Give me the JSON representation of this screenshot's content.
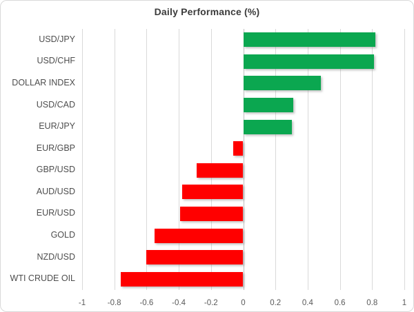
{
  "chart_data": {
    "type": "bar",
    "orientation": "horizontal",
    "title": "Daily Performance (%)",
    "categories": [
      "USD/JPY",
      "USD/CHF",
      "DOLLAR INDEX",
      "USD/CAD",
      "EUR/JPY",
      "EUR/GBP",
      "GBP/USD",
      "AUD/USD",
      "EUR/USD",
      "GOLD",
      "NZD/USD",
      "WTI CRUDE OIL"
    ],
    "values": [
      0.82,
      0.81,
      0.48,
      0.31,
      0.3,
      -0.06,
      -0.29,
      -0.38,
      -0.39,
      -0.55,
      -0.6,
      -0.76
    ],
    "xlabel": "",
    "ylabel": "",
    "xlim": [
      -1,
      1
    ],
    "x_ticks": [
      -1,
      -0.8,
      -0.6,
      -0.4,
      -0.2,
      0,
      0.2,
      0.4,
      0.6,
      0.8,
      1
    ],
    "x_tick_labels": [
      "-1",
      "-0.8",
      "-0.6",
      "-0.4",
      "-0.2",
      "0",
      "0.2",
      "0.4",
      "0.6",
      "0.8",
      "1"
    ],
    "grid": true,
    "legend": false,
    "colors": {
      "positive": "#0ba750",
      "negative": "#ff0000",
      "gridline": "#d9d9d9",
      "title_text": "#3b3b3b",
      "axis_text": "#595959",
      "category_text": "#4d4d4d",
      "frame_border": "#d9d9d9",
      "background": "#ffffff"
    }
  }
}
